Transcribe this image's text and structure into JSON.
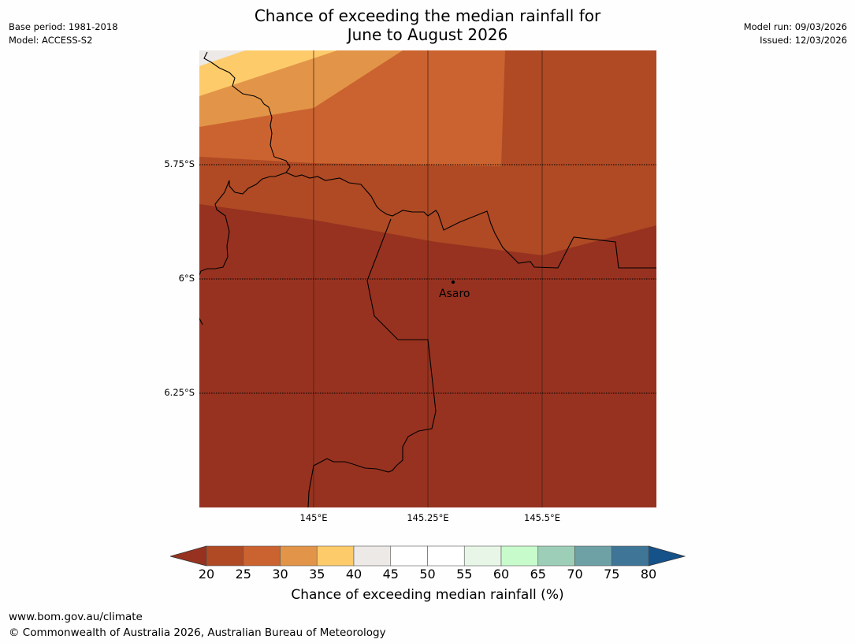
{
  "header": {
    "title_line1": "Chance of exceeding the median rainfall for",
    "title_line2": "June to August 2026",
    "base_period": "Base period: 1981-2018",
    "model": "Model: ACCESS-S2",
    "model_run": "Model run: 09/03/2026",
    "issued": "Issued: 12/03/2026"
  },
  "map": {
    "lat_labels": [
      "5.75°S",
      "6°S",
      "6.25°S"
    ],
    "lon_labels": [
      "145°E",
      "145.25°E",
      "145.5°E"
    ],
    "place": "Asaro"
  },
  "colorbar": {
    "ticks": [
      "20",
      "25",
      "30",
      "35",
      "40",
      "45",
      "50",
      "55",
      "60",
      "65",
      "70",
      "75",
      "80"
    ],
    "colors": [
      "#af4a24",
      "#cb6330",
      "#e29548",
      "#fecb6b",
      "#ece9e6",
      "#ffffff",
      "#ffffff",
      "#e8f6e8",
      "#c8fbcc",
      "#9dcfb8",
      "#6ea1a6",
      "#3f7597"
    ],
    "under_color": "#973220",
    "over_color": "#15528a",
    "label": "Chance of exceeding median rainfall (%)"
  },
  "footer": {
    "url": "www.bom.gov.au/climate",
    "copyright": "© Commonwealth of Australia 2026, Australian Bureau of Meteorology"
  }
}
